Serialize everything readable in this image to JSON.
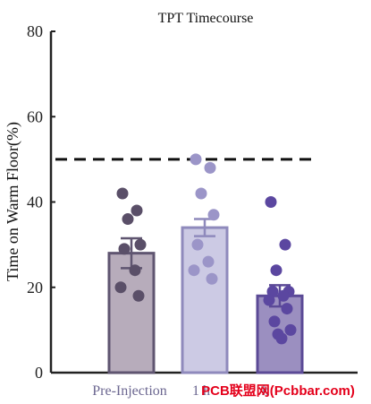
{
  "chart_data": {
    "type": "bar",
    "title": "TPT Timecourse",
    "ylabel": "Time on Warm Floor(%)",
    "xlabel": "",
    "ylim": [
      0,
      80
    ],
    "yticks": [
      0,
      20,
      40,
      60,
      80
    ],
    "categories": [
      "Pre-Injection",
      "1 hr",
      "1 Week"
    ],
    "category_labels_visible": [
      "Pre-Injection",
      "1 h",
      "k"
    ],
    "reference_line": {
      "y": 50,
      "style": "dashed"
    },
    "bars": [
      {
        "category": "Pre-Injection",
        "mean": 28,
        "sem": 3.5,
        "fill": "#b7acbb",
        "edge": "#5f5570",
        "dot": "#5a4f68",
        "points": [
          42,
          38,
          36,
          30,
          29,
          24,
          20,
          18
        ]
      },
      {
        "category": "1 hr",
        "mean": 34,
        "sem": 2,
        "fill": "#cccae4",
        "edge": "#8f8abc",
        "dot": "#9b95c8",
        "points": [
          50,
          48,
          42,
          37,
          30,
          26,
          24,
          22
        ]
      },
      {
        "category": "1 Week",
        "mean": 18,
        "sem": 2.5,
        "fill": "#9b8fc0",
        "edge": "#5b4a96",
        "dot": "#5b47a0",
        "points": [
          40,
          30,
          24,
          19,
          19,
          18,
          17,
          15,
          12,
          10,
          9,
          8
        ]
      }
    ]
  },
  "watermark": "PCB联盟网(Pcbbar.com)",
  "colors": {
    "axis": "#222222",
    "label_text": "#6b6690"
  }
}
